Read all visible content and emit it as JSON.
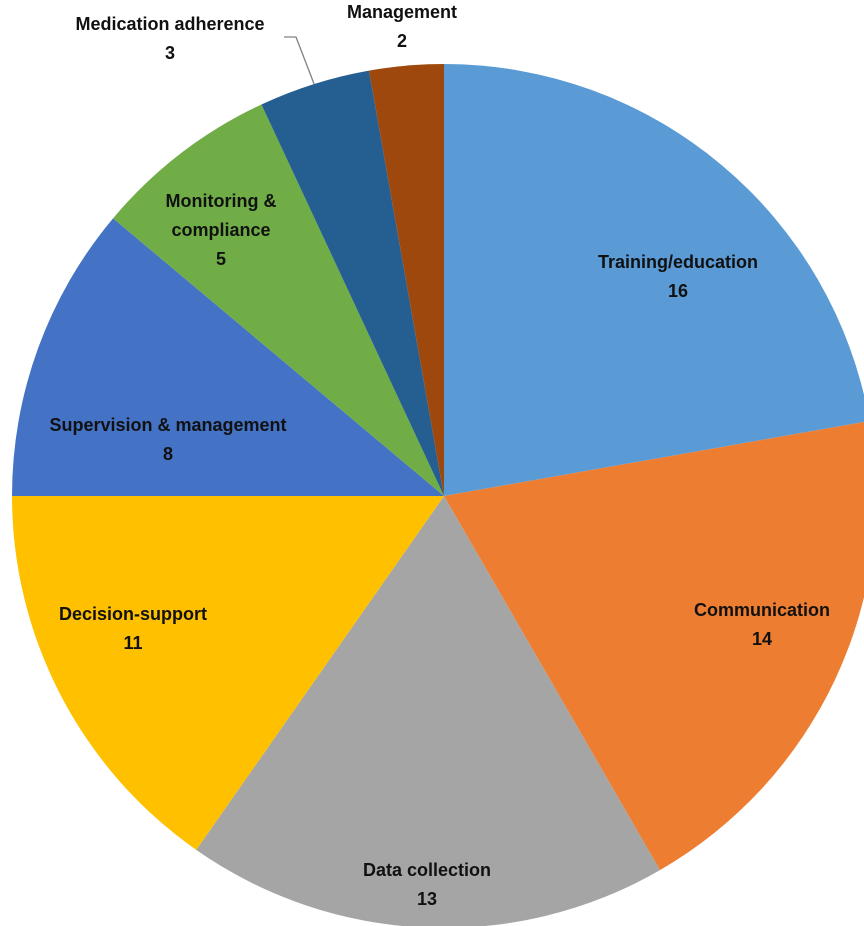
{
  "chart_data": {
    "type": "pie",
    "title": "",
    "start": "12 o'clock",
    "direction": "clockwise",
    "slices": [
      {
        "label": "Training/education",
        "value": 16,
        "color": "#5B9BD5",
        "label_position": "inside"
      },
      {
        "label": "Communication",
        "value": 14,
        "color": "#ED7D31",
        "label_position": "inside"
      },
      {
        "label": "Data collection",
        "value": 13,
        "color": "#A5A5A5",
        "label_position": "inside"
      },
      {
        "label": "Decision-support",
        "value": 11,
        "color": "#FFC000",
        "label_position": "inside"
      },
      {
        "label": "Supervision & management",
        "value": 8,
        "color": "#4472C4",
        "label_position": "inside"
      },
      {
        "label": "Monitoring & compliance",
        "value": 5,
        "color": "#70AD47",
        "label_position": "inside"
      },
      {
        "label": "Medication adherence",
        "value": 3,
        "color": "#255E91",
        "label_position": "outside, with leader line"
      },
      {
        "label": "Management",
        "value": 2,
        "color": "#9E480E",
        "label_position": "outside"
      }
    ]
  }
}
